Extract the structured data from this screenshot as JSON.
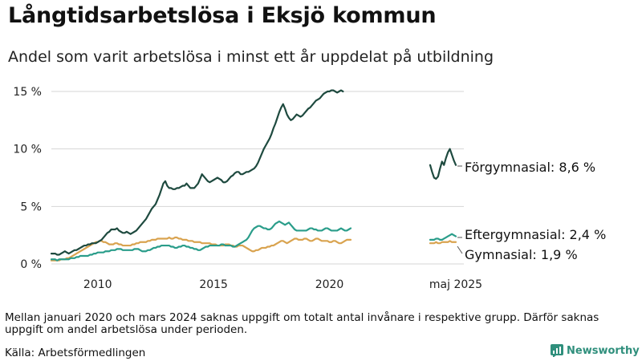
{
  "title": "Långtidsarbetslösa i Eksjö kommun",
  "subtitle": "Andel som varit arbetslösa i minst ett år uppdelat på utbildning",
  "note": "Mellan januari 2020 och mars 2024 saknas uppgift om totalt antal invånare i respektive grupp. Därför saknas uppgift om andel arbetslösa under perioden.",
  "source": "Källa: Arbetsförmedlingen",
  "brand": "Newsworthy",
  "chart_data": {
    "type": "line",
    "y_ticks": [
      {
        "value": 0,
        "label": "0 %"
      },
      {
        "value": 5,
        "label": "5 %"
      },
      {
        "value": 10,
        "label": "10 %"
      },
      {
        "value": 15,
        "label": "15 %"
      }
    ],
    "x_ticks": [
      {
        "label": "2010",
        "segment": 0,
        "index": 24
      },
      {
        "label": "2015",
        "segment": 0,
        "index": 84
      },
      {
        "label": "2020",
        "segment": 0,
        "index": 144
      },
      {
        "label": "maj 2025",
        "segment": 1,
        "index": 13
      }
    ],
    "ylim": [
      0,
      16
    ],
    "grid": true,
    "segments": [
      {
        "start": "2008-01",
        "end": "2020-12",
        "count": 156
      },
      {
        "start": "2024-04",
        "end": "2025-05",
        "count": 14
      }
    ],
    "series": [
      {
        "name": "Förgymnasial",
        "color": "#1e4a3f",
        "end_label": "Förgymnasial: 8,6 %",
        "values": [
          [
            0.9,
            0.9,
            0.9,
            0.8,
            0.8,
            0.9,
            1.0,
            1.1,
            1.0,
            0.9,
            1.0,
            1.1,
            1.2,
            1.2,
            1.3,
            1.4,
            1.5,
            1.6,
            1.6,
            1.7,
            1.7,
            1.8,
            1.8,
            1.8,
            1.9,
            2.0,
            2.1,
            2.3,
            2.5,
            2.7,
            2.8,
            3.0,
            3.0,
            3.0,
            3.1,
            2.9,
            2.8,
            2.7,
            2.7,
            2.8,
            2.7,
            2.6,
            2.7,
            2.8,
            2.9,
            3.1,
            3.3,
            3.5,
            3.7,
            3.9,
            4.2,
            4.5,
            4.8,
            5.0,
            5.2,
            5.6,
            6.0,
            6.5,
            7.0,
            7.2,
            6.8,
            6.6,
            6.6,
            6.5,
            6.5,
            6.6,
            6.6,
            6.7,
            6.8,
            6.8,
            7.0,
            6.8,
            6.6,
            6.6,
            6.6,
            6.8,
            7.0,
            7.4,
            7.8,
            7.6,
            7.4,
            7.2,
            7.1,
            7.2,
            7.3,
            7.4,
            7.5,
            7.4,
            7.3,
            7.1,
            7.1,
            7.2,
            7.4,
            7.6,
            7.7,
            7.9,
            8.0,
            8.0,
            7.8,
            7.8,
            7.9,
            8.0,
            8.0,
            8.1,
            8.2,
            8.3,
            8.5,
            8.8,
            9.2,
            9.6,
            10.0,
            10.3,
            10.6,
            10.9,
            11.3,
            11.8,
            12.2,
            12.7,
            13.2,
            13.6,
            13.9,
            13.5,
            13.0,
            12.7,
            12.5,
            12.6,
            12.8,
            13.0,
            12.9,
            12.8,
            12.9,
            13.1,
            13.3,
            13.5,
            13.6,
            13.8,
            14.0,
            14.2,
            14.3,
            14.4,
            14.6,
            14.8,
            14.9,
            15.0,
            15.0,
            15.1,
            15.1,
            15.0,
            14.9,
            15.0,
            15.1,
            15.0
          ],
          [
            8.6,
            8.0,
            7.5,
            7.4,
            7.6,
            8.3,
            8.9,
            8.6,
            9.2,
            9.7,
            10.0,
            9.5,
            9.0,
            8.6
          ]
        ]
      },
      {
        "name": "Eftergymnasial",
        "color": "#2a9d8a",
        "end_label": "Eftergymnasial: 2,4 %",
        "values": [
          [
            0.4,
            0.4,
            0.4,
            0.3,
            0.4,
            0.4,
            0.4,
            0.4,
            0.4,
            0.4,
            0.5,
            0.5,
            0.5,
            0.6,
            0.6,
            0.7,
            0.7,
            0.7,
            0.7,
            0.7,
            0.8,
            0.8,
            0.9,
            0.9,
            1.0,
            1.0,
            1.0,
            1.0,
            1.1,
            1.1,
            1.1,
            1.2,
            1.2,
            1.2,
            1.3,
            1.3,
            1.3,
            1.2,
            1.2,
            1.2,
            1.2,
            1.2,
            1.2,
            1.3,
            1.3,
            1.3,
            1.2,
            1.1,
            1.1,
            1.1,
            1.2,
            1.2,
            1.3,
            1.4,
            1.4,
            1.5,
            1.5,
            1.6,
            1.6,
            1.6,
            1.6,
            1.6,
            1.5,
            1.5,
            1.4,
            1.4,
            1.5,
            1.5,
            1.6,
            1.6,
            1.5,
            1.5,
            1.4,
            1.4,
            1.3,
            1.3,
            1.2,
            1.2,
            1.3,
            1.4,
            1.5,
            1.5,
            1.6,
            1.6,
            1.6,
            1.6,
            1.6,
            1.6,
            1.7,
            1.7,
            1.6,
            1.6,
            1.6,
            1.6,
            1.5,
            1.5,
            1.6,
            1.7,
            1.8,
            1.9,
            2.0,
            2.1,
            2.3,
            2.6,
            2.9,
            3.1,
            3.2,
            3.3,
            3.3,
            3.2,
            3.1,
            3.1,
            3.0,
            3.0,
            3.1,
            3.3,
            3.5,
            3.6,
            3.7,
            3.6,
            3.5,
            3.4,
            3.5,
            3.6,
            3.4,
            3.2,
            3.0,
            2.9,
            2.9,
            2.9,
            2.9,
            2.9,
            2.9,
            3.0,
            3.1,
            3.1,
            3.0,
            3.0,
            2.9,
            2.9,
            2.9,
            3.0,
            3.1,
            3.1,
            3.0,
            2.9,
            2.9,
            2.9,
            2.9,
            3.0,
            3.1,
            3.0,
            2.9,
            2.9,
            3.0,
            3.1
          ],
          [
            2.1,
            2.1,
            2.1,
            2.2,
            2.2,
            2.1,
            2.1,
            2.2,
            2.3,
            2.4,
            2.5,
            2.6,
            2.5,
            2.4
          ]
        ]
      },
      {
        "name": "Gymnasial",
        "color": "#d9a34f",
        "end_label": "Gymnasial: 1,9 %",
        "values": [
          [
            0.3,
            0.3,
            0.3,
            0.3,
            0.3,
            0.4,
            0.4,
            0.4,
            0.5,
            0.5,
            0.6,
            0.7,
            0.8,
            0.9,
            1.0,
            1.1,
            1.2,
            1.3,
            1.4,
            1.5,
            1.6,
            1.7,
            1.8,
            1.9,
            1.9,
            2.0,
            2.0,
            1.9,
            1.9,
            1.8,
            1.7,
            1.7,
            1.7,
            1.8,
            1.8,
            1.7,
            1.7,
            1.6,
            1.6,
            1.6,
            1.6,
            1.6,
            1.7,
            1.7,
            1.8,
            1.8,
            1.9,
            1.9,
            1.9,
            1.9,
            2.0,
            2.0,
            2.1,
            2.1,
            2.1,
            2.2,
            2.2,
            2.2,
            2.2,
            2.2,
            2.2,
            2.3,
            2.2,
            2.2,
            2.3,
            2.3,
            2.2,
            2.2,
            2.1,
            2.1,
            2.1,
            2.0,
            2.0,
            2.0,
            1.9,
            1.9,
            1.9,
            1.9,
            1.8,
            1.8,
            1.8,
            1.8,
            1.8,
            1.7,
            1.7,
            1.7,
            1.6,
            1.6,
            1.6,
            1.6,
            1.7,
            1.7,
            1.7,
            1.6,
            1.6,
            1.5,
            1.5,
            1.6,
            1.6,
            1.6,
            1.5,
            1.4,
            1.3,
            1.2,
            1.1,
            1.1,
            1.2,
            1.2,
            1.3,
            1.4,
            1.4,
            1.4,
            1.5,
            1.5,
            1.6,
            1.6,
            1.7,
            1.8,
            1.9,
            2.0,
            2.0,
            1.9,
            1.8,
            1.9,
            2.0,
            2.1,
            2.2,
            2.2,
            2.1,
            2.1,
            2.1,
            2.2,
            2.2,
            2.1,
            2.0,
            2.0,
            2.1,
            2.2,
            2.2,
            2.1,
            2.0,
            2.0,
            2.0,
            2.0,
            1.9,
            1.9,
            2.0,
            2.0,
            1.9,
            1.8,
            1.8,
            1.9,
            2.0,
            2.1,
            2.1,
            2.1
          ],
          [
            1.8,
            1.8,
            1.8,
            1.9,
            1.8,
            1.8,
            1.9,
            1.9,
            1.9,
            1.9,
            2.0,
            1.9,
            1.9,
            1.9
          ]
        ]
      }
    ]
  }
}
